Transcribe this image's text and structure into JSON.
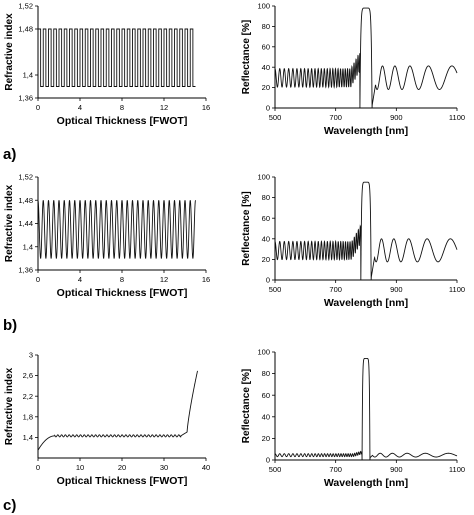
{
  "panel_labels": [
    "a)",
    "b)",
    "c)"
  ],
  "chart_data": [
    {
      "type": "line",
      "panel": "a)",
      "xlabel": "Optical Thickness [FWOT]",
      "ylabel": "Refractive index",
      "xlim": [
        0,
        16
      ],
      "ylim": [
        1.36,
        1.52
      ],
      "xticks": [
        0,
        4,
        8,
        12,
        16
      ],
      "yticks": [
        1.36,
        1.4,
        1.48,
        1.52
      ],
      "xtick_labels": [
        "0",
        "4",
        "8",
        "12",
        "16"
      ],
      "ytick_labels": [
        "1,36",
        "1,4",
        "1,48",
        "1,52"
      ],
      "profile": "rectangular",
      "n_low": 1.38,
      "n_high": 1.48,
      "periods": 30,
      "x_end": 15
    },
    {
      "type": "line",
      "panel": "a)",
      "xlabel": "Wavelength [nm]",
      "ylabel": "Reflectance [%]",
      "xlim": [
        500,
        1100
      ],
      "ylim": [
        0,
        100
      ],
      "xticks": [
        500,
        700,
        900,
        1100
      ],
      "yticks": [
        0,
        20,
        40,
        60,
        80,
        100
      ],
      "xtick_labels": [
        "500",
        "700",
        "900",
        "1100"
      ],
      "ytick_labels": [
        "0",
        "20",
        "40",
        "60",
        "80",
        "100"
      ],
      "peak_center": 800,
      "peak_width": 40,
      "peak_max": 98,
      "sidelobe_level": 33
    },
    {
      "type": "line",
      "panel": "b)",
      "xlabel": "Optical Thickness [FWOT]",
      "ylabel": "Refractive index",
      "xlim": [
        0,
        16
      ],
      "ylim": [
        1.36,
        1.52
      ],
      "xticks": [
        0,
        4,
        8,
        12,
        16
      ],
      "yticks": [
        1.36,
        1.4,
        1.44,
        1.48,
        1.52
      ],
      "xtick_labels": [
        "0",
        "4",
        "8",
        "12",
        "16"
      ],
      "ytick_labels": [
        "1,36",
        "1,4",
        "1,44",
        "1,48",
        "1,52"
      ],
      "profile": "sinusoidal",
      "n_low": 1.38,
      "n_high": 1.48,
      "periods": 30,
      "x_end": 15
    },
    {
      "type": "line",
      "panel": "b)",
      "xlabel": "Wavelength [nm]",
      "ylabel": "Reflectance [%]",
      "xlim": [
        500,
        1100
      ],
      "ylim": [
        0,
        100
      ],
      "xticks": [
        500,
        700,
        900,
        1100
      ],
      "yticks": [
        0,
        20,
        40,
        60,
        80,
        100
      ],
      "xtick_labels": [
        "500",
        "700",
        "900",
        "1100"
      ],
      "ytick_labels": [
        "0",
        "20",
        "40",
        "60",
        "80",
        "100"
      ],
      "peak_center": 800,
      "peak_width": 34,
      "peak_max": 95,
      "sidelobe_level": 32
    },
    {
      "type": "line",
      "panel": "c)",
      "xlabel": "Optical Thickness [FWOT]",
      "ylabel": "Refractive index",
      "xlim": [
        0,
        40
      ],
      "ylim": [
        1,
        3
      ],
      "xticks": [
        0,
        10,
        20,
        30,
        40
      ],
      "yticks": [
        1.4,
        1.8,
        2.2,
        2.6,
        3
      ],
      "xtick_labels": [
        "0",
        "10",
        "20",
        "30",
        "40"
      ],
      "ytick_labels": [
        "1,4",
        "1,8",
        "2,2",
        "2,6",
        "3"
      ],
      "profile": "apodized-with-matching-layers",
      "n_start": 1.15,
      "n_plateau": 1.43,
      "ripple": 0.02,
      "n_end": 2.7,
      "x_end": 38
    },
    {
      "type": "line",
      "panel": "c)",
      "xlabel": "Wavelength [nm]",
      "ylabel": "Reflectance [%]",
      "xlim": [
        500,
        1100
      ],
      "ylim": [
        0,
        100
      ],
      "xticks": [
        500,
        700,
        900,
        1100
      ],
      "yticks": [
        0,
        20,
        40,
        60,
        80,
        100
      ],
      "xtick_labels": [
        "500",
        "700",
        "900",
        "1100"
      ],
      "ytick_labels": [
        "0",
        "20",
        "40",
        "60",
        "80",
        "100"
      ],
      "peak_center": 800,
      "peak_width": 26,
      "peak_max": 94,
      "sidelobe_level": 5
    }
  ]
}
